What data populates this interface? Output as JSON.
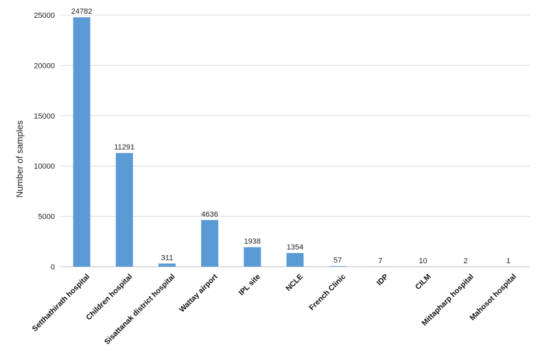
{
  "chart_data": {
    "type": "bar",
    "ylabel": "Number of samples",
    "ylim": [
      0,
      25000
    ],
    "yticks": [
      0,
      5000,
      10000,
      15000,
      20000,
      25000
    ],
    "grid": true,
    "color": "#5b9bd5",
    "categories": [
      "Setthathirath hospital",
      "Children hospital",
      "Sisattanak district hospital",
      "Wattay airport",
      "IPL site",
      "NCLE",
      "French Clinic",
      "IDP",
      "CILM",
      "Mittapharp hospital",
      "Mahosot hospital"
    ],
    "values": [
      24782,
      11291,
      311,
      4636,
      1938,
      1354,
      57,
      7,
      10,
      2,
      1
    ]
  }
}
